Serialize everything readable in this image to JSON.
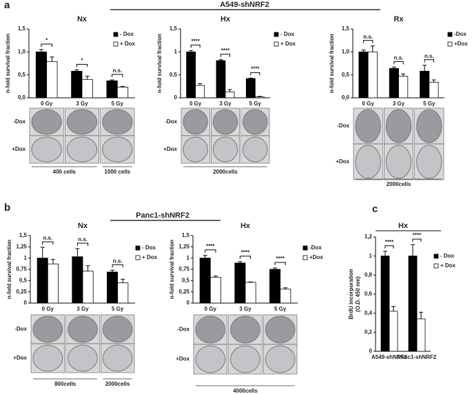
{
  "figure": {
    "labels": [
      "a",
      "b",
      "c"
    ],
    "groups": [
      "A549-shNRF2",
      "Panc1-shNRF2"
    ]
  },
  "chart_data": [
    {
      "type": "bar",
      "title": "Nx",
      "ylabel": [
        "n-fold survival fraction"
      ],
      "categories": [
        "0 Gy",
        "3 Gy",
        "5 Gy"
      ],
      "series": [
        {
          "name": "- Dox",
          "color": "#000000",
          "values": [
            1.0,
            0.58,
            0.37
          ],
          "errors": [
            0.05,
            0.03,
            0.02
          ]
        },
        {
          "name": "+ Dox",
          "color": "#ffffff",
          "values": [
            0.79,
            0.4,
            0.23
          ],
          "errors": [
            0.1,
            0.07,
            0.02
          ]
        }
      ],
      "significance": [
        "*",
        "*",
        "n.s."
      ],
      "ylim": [
        0,
        1.5
      ],
      "yticks": [
        {
          "value": 0,
          "label": "0,0"
        },
        {
          "value": 0.5,
          "label": "0,5"
        },
        {
          "value": 1,
          "label": "1,0"
        },
        {
          "value": 1.5,
          "label": "1,5"
        }
      ],
      "dish_rows": [
        "-Dox",
        "+Dox"
      ],
      "notes": [
        "400 cells",
        "1000 cells"
      ]
    },
    {
      "type": "bar",
      "title": "Hx",
      "ylabel": [
        "n-fold survival fraction"
      ],
      "categories": [
        "0 Gy",
        "3 Gy",
        "5 Gy"
      ],
      "series": [
        {
          "name": "- Dox",
          "color": "#000000",
          "values": [
            1.0,
            0.81,
            0.42
          ],
          "errors": [
            0.03,
            0.02,
            0.01
          ]
        },
        {
          "name": "+ Dox",
          "color": "#ffffff",
          "values": [
            0.27,
            0.13,
            0.02
          ],
          "errors": [
            0.04,
            0.05,
            0.01
          ]
        }
      ],
      "significance": [
        "****",
        "****",
        "****"
      ],
      "ylim": [
        0,
        1.5
      ],
      "yticks": [
        0,
        {
          "value": 0.5,
          "label": "0,5"
        },
        1,
        {
          "value": 1.5,
          "label": "1,5"
        }
      ],
      "dish_rows": [
        "-Dox",
        "+Dox"
      ],
      "notes": [
        "2000cells"
      ]
    },
    {
      "type": "bar",
      "title": "Rx",
      "ylabel": [
        "n-fold survival fraction"
      ],
      "categories": [
        "0 Gy",
        "3 Gy",
        "5 Gy"
      ],
      "series": [
        {
          "name": "-Dox",
          "color": "#000000",
          "values": [
            1.0,
            0.64,
            0.58
          ],
          "errors": [
            0.04,
            0.03,
            0.13
          ]
        },
        {
          "name": "+Dox",
          "color": "#ffffff",
          "values": [
            1.0,
            0.47,
            0.34
          ],
          "errors": [
            0.13,
            0.05,
            0.05
          ]
        }
      ],
      "significance": [
        "n.s.",
        "n.s.",
        "n.s."
      ],
      "ylim": [
        0,
        1.5
      ],
      "yticks": [
        {
          "value": 0,
          "label": "0,0"
        },
        {
          "value": 0.5,
          "label": "0,5"
        },
        {
          "value": 1,
          "label": "1,0"
        },
        {
          "value": 1.5,
          "label": "1,5"
        }
      ],
      "dish_rows": [
        "-Dox",
        "+Dox"
      ],
      "notes": [
        "2000cells"
      ]
    },
    {
      "type": "bar",
      "title": "Nx",
      "ylabel": [
        "n-fold survival fraction"
      ],
      "categories": [
        "0 Gy",
        "3 Gy",
        "5 Gy"
      ],
      "series": [
        {
          "name": "- Dox",
          "color": "#000000",
          "values": [
            1.0,
            1.03,
            0.69
          ],
          "errors": [
            0.24,
            0.18,
            0.04
          ]
        },
        {
          "name": "+ Dox",
          "color": "#ffffff",
          "values": [
            0.87,
            0.71,
            0.45
          ],
          "errors": [
            0.1,
            0.12,
            0.08
          ]
        }
      ],
      "significance": [
        "n.s.",
        "n.s.",
        "n.s."
      ],
      "ylim": [
        0,
        1.5
      ],
      "yticks": [
        0,
        {
          "value": 0.25,
          "label": "0,25"
        },
        {
          "value": 0.5,
          "label": "0,5"
        },
        {
          "value": 0.75,
          "label": "0,75"
        },
        1,
        {
          "value": 1.25,
          "label": "1,25"
        },
        {
          "value": 1.5,
          "label": "1,5"
        }
      ],
      "dish_rows": [
        "-Dox",
        "+Dox"
      ],
      "notes": [
        "800cells",
        "2000cells"
      ]
    },
    {
      "type": "bar",
      "title": "Hx",
      "ylabel": [
        "n-fold survival fraction"
      ],
      "categories": [
        "0 Gy",
        "3 Gy",
        "5 Gy"
      ],
      "series": [
        {
          "name": "-Dox",
          "color": "#000000",
          "values": [
            1.0,
            0.89,
            0.75
          ],
          "errors": [
            0.06,
            0.03,
            0.03
          ]
        },
        {
          "name": "+Dox",
          "color": "#ffffff",
          "values": [
            0.57,
            0.46,
            0.31
          ],
          "errors": [
            0.03,
            0.01,
            0.03
          ]
        }
      ],
      "significance": [
        "****",
        "****",
        "****"
      ],
      "ylim": [
        0,
        1.5
      ],
      "yticks": [
        0,
        {
          "value": 0.25,
          "label": "0,25"
        },
        {
          "value": 0.5,
          "label": "0,5"
        },
        {
          "value": 0.75,
          "label": "0,75"
        },
        1,
        {
          "value": 1.25,
          "label": "1,25"
        },
        {
          "value": 1.5,
          "label": "1,5"
        }
      ],
      "dish_rows": [
        "-Dox",
        "+Dox"
      ],
      "notes": [
        "4000cells"
      ]
    },
    {
      "type": "bar",
      "title": "Hx",
      "ylabel": [
        "BrdU incorporation",
        "(O.D. 450 nm)"
      ],
      "categories": [
        "A549-shNRF2",
        "Panc1-shNRF2"
      ],
      "series": [
        {
          "name": "- Dox",
          "color": "#000000",
          "values": [
            1.0,
            1.0
          ],
          "errors": [
            0.05,
            0.12
          ]
        },
        {
          "name": "+ Dox",
          "color": "#ffffff",
          "values": [
            0.42,
            0.34
          ],
          "errors": [
            0.05,
            0.07
          ]
        }
      ],
      "significance": [
        "****",
        "****"
      ],
      "ylim": [
        0,
        1.2
      ],
      "yticks": [
        0,
        {
          "value": 0.2,
          "label": "0,2"
        },
        {
          "value": 0.4,
          "label": "0,4"
        },
        {
          "value": 0.6,
          "label": "0,6"
        },
        {
          "value": 0.8,
          "label": "0,8"
        },
        1,
        {
          "value": 1.2,
          "label": "1,2"
        }
      ]
    }
  ]
}
